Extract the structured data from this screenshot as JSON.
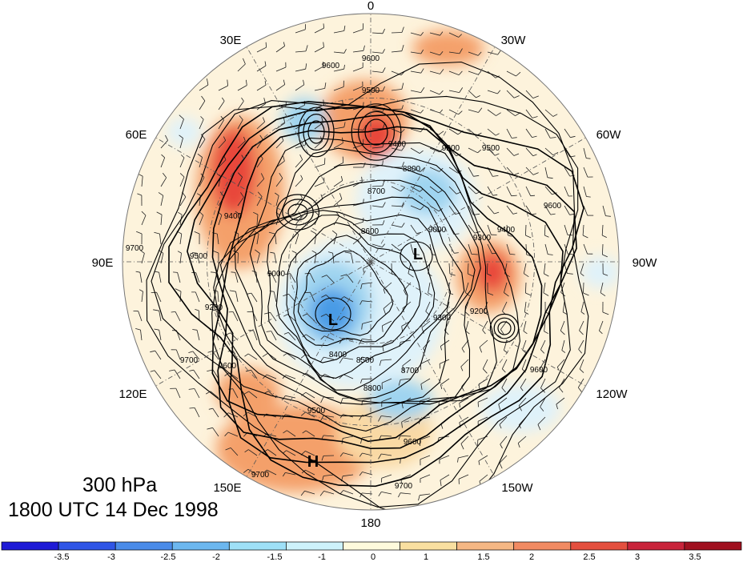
{
  "map": {
    "meridian_labels": [
      "0",
      "30W",
      "60W",
      "90W",
      "120W",
      "150W",
      "180",
      "150E",
      "120E",
      "90E",
      "60E",
      "30E"
    ],
    "contour_labels": [
      "9600",
      "9600",
      "9500",
      "9400",
      "9200",
      "9000",
      "8800",
      "8700",
      "8600",
      "8500",
      "8400",
      "8800",
      "8700",
      "9000",
      "9300",
      "9500",
      "9600",
      "9700",
      "9700",
      "9700",
      "9500",
      "9600",
      "9200",
      "9400",
      "9500",
      "9300",
      "9700",
      "9600",
      "9200",
      "9400",
      "9600"
    ],
    "centers": [
      {
        "symbol": "L"
      },
      {
        "symbol": "L"
      },
      {
        "symbol": "H"
      }
    ],
    "anomaly_colors": {
      "strong_positive": "#e8473a",
      "positive": "#f4a06a",
      "weak_positive": "#f9d9a4",
      "neutral": "#fdf3dc",
      "weak_negative": "#dff2fa",
      "negative": "#9fd4f0",
      "strong_negative": "#4a9be6"
    }
  },
  "title": {
    "level": "300 hPa",
    "time": "1800 UTC 14 Dec 1998"
  },
  "colorbar": {
    "colors": [
      "#1e1ad6",
      "#2f55e6",
      "#4a8be8",
      "#6cb7ef",
      "#9ee0f7",
      "#cdf2fb",
      "#fefadc",
      "#f9dfa0",
      "#f5b784",
      "#f18a62",
      "#e44f3e",
      "#c8233a",
      "#a0101f"
    ],
    "tick_labels": [
      "-3.5",
      "-3",
      "-2.5",
      "-2",
      "-1.5",
      "-1",
      "0",
      "1",
      "1.5",
      "2",
      "2.5",
      "3",
      "3.5"
    ]
  }
}
